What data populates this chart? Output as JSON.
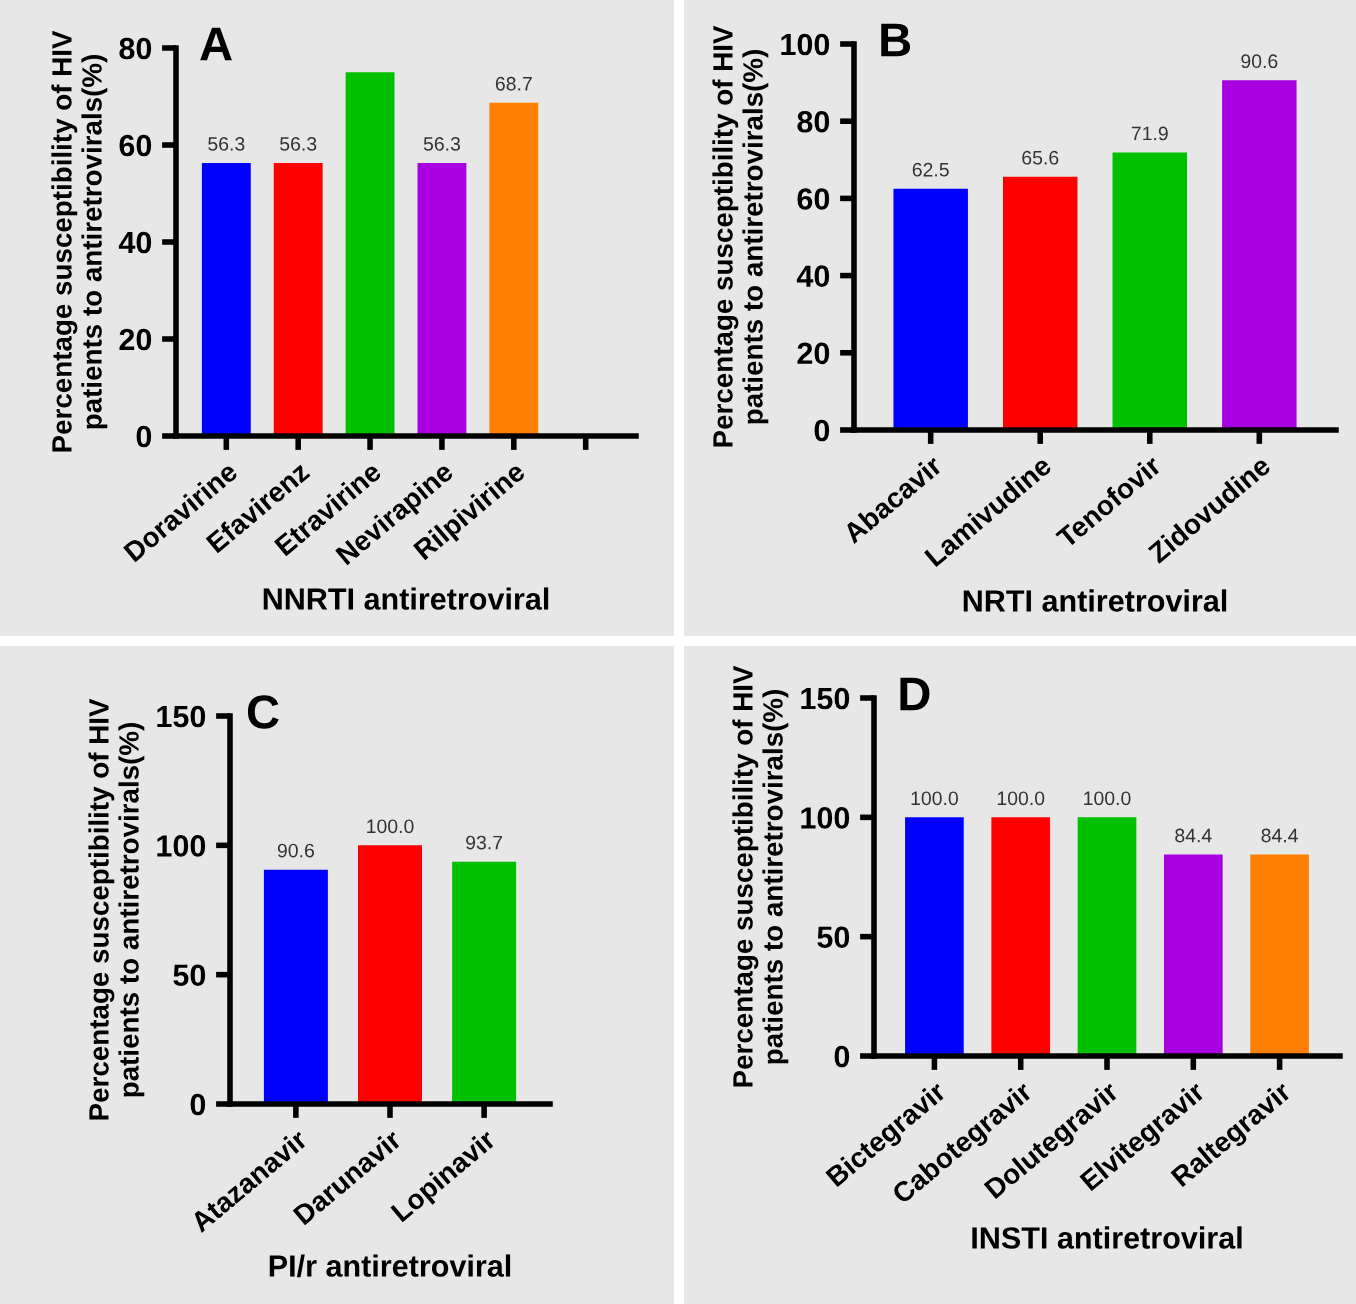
{
  "chart_data": [
    {
      "type": "bar",
      "title": "A",
      "ylabel": "Percentage susceptibility of HIV\npatients to antiretrovirals(%)",
      "xlabel": "NNRTI antiretroviral",
      "categories": [
        "Doravirine",
        "Efavirenz",
        "Etravirine",
        "Nevirapine",
        "Rilpivirine",
        null
      ],
      "colors": [
        "#0000ff",
        "#ff0000",
        "#00c000",
        "#a800e0",
        "#ff8000",
        "#000000"
      ],
      "values": [
        56.3,
        56.3,
        75,
        56.3,
        68.7,
        null
      ],
      "value_labels": [
        "56.3",
        "56.3",
        null,
        "56.3",
        "68.7",
        null
      ],
      "ylim": [
        0,
        80
      ],
      "yticks": [
        0,
        20,
        40,
        60,
        80
      ]
    },
    {
      "type": "bar",
      "title": "B",
      "ylabel": "Percentage susceptibility of HIV\npatients to antiretrovirals(%)",
      "xlabel": "NRTI antiretroviral",
      "categories": [
        "Abacavir",
        "Lamivudine",
        "Tenofovir",
        "Zidovudine"
      ],
      "colors": [
        "#0000ff",
        "#ff0000",
        "#00c000",
        "#a800e0"
      ],
      "values": [
        62.5,
        65.6,
        71.9,
        90.6
      ],
      "value_labels": [
        "62.5",
        "65.6",
        "71.9",
        "90.6"
      ],
      "ylim": [
        0,
        100
      ],
      "yticks": [
        0,
        20,
        40,
        60,
        80,
        100
      ]
    },
    {
      "type": "bar",
      "title": "C",
      "ylabel": "Percentage susceptibility of HIV\npatients to antiretrovirals(%)",
      "xlabel": "PI/r antiretroviral",
      "categories": [
        "Atazanavir",
        "Darunavir",
        "Lopinavir"
      ],
      "colors": [
        "#0000ff",
        "#ff0000",
        "#00c000"
      ],
      "values": [
        90.6,
        100.0,
        93.7
      ],
      "value_labels": [
        "90.6",
        "100.0",
        "93.7"
      ],
      "ylim": [
        0,
        150
      ],
      "yticks": [
        0,
        50,
        100,
        150
      ]
    },
    {
      "type": "bar",
      "title": "D",
      "ylabel": "Percentage susceptibility of HIV\npatients to antiretrovirals(%)",
      "xlabel": "INSTI antiretroviral",
      "categories": [
        "Bictegravir",
        "Cabotegravir",
        "Dolutegravir",
        "Elvitegravir",
        "Raltegravir"
      ],
      "colors": [
        "#0000ff",
        "#ff0000",
        "#00c000",
        "#a800e0",
        "#ff8000"
      ],
      "values": [
        100.0,
        100.0,
        100.0,
        84.4,
        84.4
      ],
      "value_labels": [
        "100.0",
        "100.0",
        "100.0",
        "84.4",
        "84.4"
      ],
      "ylim": [
        0,
        150
      ],
      "yticks": [
        0,
        50,
        100,
        150
      ]
    }
  ]
}
